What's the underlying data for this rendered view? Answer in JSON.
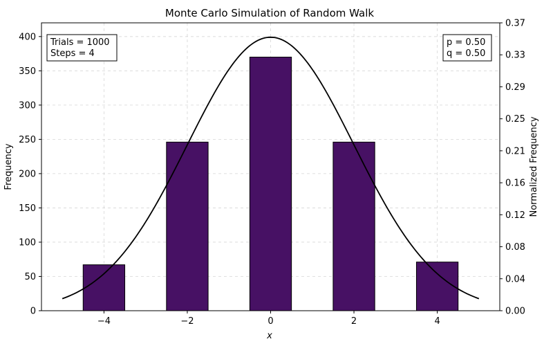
{
  "chart_data": {
    "type": "bar",
    "title": "Monte Carlo Simulation of Random Walk",
    "xlabel": "x",
    "ylabel": "Frequency",
    "y2label": "Normalized Frequency",
    "xlim": [
      -5.5,
      5.5
    ],
    "ylim": [
      0,
      420
    ],
    "y2lim": [
      0,
      0.37
    ],
    "xticks": [
      -4,
      -2,
      0,
      2,
      4
    ],
    "xtick_labels": [
      "−4",
      "−2",
      "0",
      "2",
      "4"
    ],
    "yticks": [
      0,
      50,
      100,
      150,
      200,
      250,
      300,
      350,
      400
    ],
    "y2ticks": [
      "0.00",
      "0.04",
      "0.08",
      "0.12",
      "0.16",
      "0.21",
      "0.25",
      "0.29",
      "0.33",
      "0.37"
    ],
    "grid": true,
    "bar_width": 1,
    "bar_color": "#471164",
    "curve_color": "#000000",
    "categories": [
      -4,
      -2,
      0,
      2,
      4
    ],
    "values": [
      67,
      246,
      370,
      246,
      71
    ],
    "curve": {
      "type": "gaussian",
      "mean": 0,
      "std": 2,
      "x_range": [
        -5,
        5
      ],
      "y_peak": 399
    },
    "annotations": {
      "left_lines": [
        "Trials = 1000",
        "Steps = 4"
      ],
      "right_lines": [
        "p = 0.50",
        "q = 0.50"
      ]
    }
  }
}
